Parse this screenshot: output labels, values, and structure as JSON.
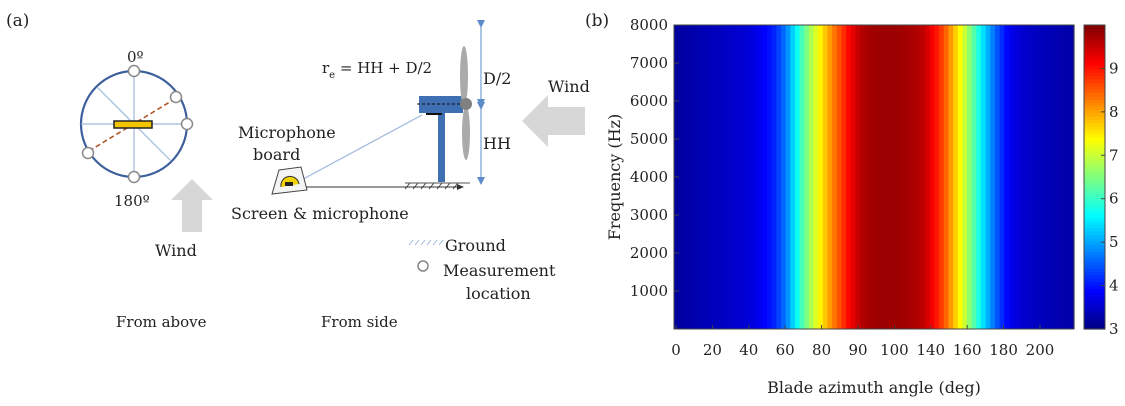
{
  "panel_a": {
    "label": "(a)",
    "top_view": {
      "angle_top": "0º",
      "angle_bottom": "180º",
      "wind_label": "Wind",
      "caption": "From above"
    },
    "side_view": {
      "formula_r": "r",
      "formula_sub": "e",
      "formula_rest": " = HH + D/2",
      "d_half": "D/2",
      "hh": "HH",
      "wind_label": "Wind",
      "board_line1": "Microphone",
      "board_line2": "board",
      "screen_label": "Screen & microphone",
      "legend_ground": "Ground",
      "legend_measure_line1": "Measurement",
      "legend_measure_line2": "location",
      "caption": "From side"
    }
  },
  "panel_b": {
    "label": "(b)"
  },
  "chart_data": {
    "type": "heatmap",
    "xlabel": "Blade azimuth angle (deg)",
    "ylabel": "Frequency (Hz)",
    "x_tick_labels": [
      "0",
      "20",
      "40",
      "60",
      "80",
      "90",
      "100",
      "140",
      "160",
      "180",
      "200"
    ],
    "y_ticks": [
      1000,
      2000,
      3000,
      4000,
      5000,
      6000,
      7000,
      8000
    ],
    "ylim": [
      0,
      8000
    ],
    "colorbar_ticks": [
      "3",
      "4",
      "5",
      "6",
      "7",
      "8",
      "9"
    ],
    "colorbar_range": [
      3,
      10
    ],
    "colormap": "jet",
    "level_by_azimuth": [
      [
        0,
        3.2
      ],
      [
        10,
        3.3
      ],
      [
        20,
        3.4
      ],
      [
        30,
        3.5
      ],
      [
        40,
        3.6
      ],
      [
        50,
        3.9
      ],
      [
        55,
        4.2
      ],
      [
        60,
        4.7
      ],
      [
        65,
        5.5
      ],
      [
        70,
        6.3
      ],
      [
        75,
        7.0
      ],
      [
        80,
        7.6
      ],
      [
        85,
        8.2
      ],
      [
        90,
        8.7
      ],
      [
        95,
        9.2
      ],
      [
        100,
        9.6
      ],
      [
        105,
        9.75
      ],
      [
        110,
        9.8
      ],
      [
        120,
        9.8
      ],
      [
        130,
        9.7
      ],
      [
        135,
        9.5
      ],
      [
        140,
        9.1
      ],
      [
        145,
        8.6
      ],
      [
        150,
        7.9
      ],
      [
        155,
        7.2
      ],
      [
        160,
        6.4
      ],
      [
        165,
        5.6
      ],
      [
        170,
        4.9
      ],
      [
        175,
        4.3
      ],
      [
        180,
        3.8
      ],
      [
        185,
        3.6
      ],
      [
        190,
        3.5
      ],
      [
        200,
        3.4
      ],
      [
        210,
        3.3
      ],
      [
        215,
        3.3
      ]
    ]
  }
}
